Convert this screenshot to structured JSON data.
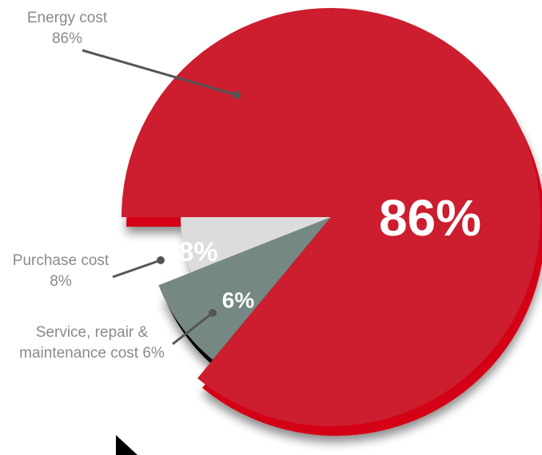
{
  "chart_data": {
    "type": "pie",
    "title": "",
    "slices": [
      {
        "label": "Energy cost",
        "value": 86,
        "value_label": "86%",
        "callout": "Energy cost 86%",
        "color": "#cc1e2e",
        "side_color": "#d40616"
      },
      {
        "label": "Purchase cost",
        "value": 8,
        "value_label": "8%",
        "callout": "Purchase cost 8%",
        "color": "#768884",
        "side_color": "#000000"
      },
      {
        "label": "Service, repair & maintenance cost",
        "value": 6,
        "value_label": "6%",
        "callout": "Service, repair & maintenance cost 6%",
        "color": "#dcdcdc",
        "side_color": "#000000"
      }
    ]
  },
  "callouts": {
    "energy": {
      "line1": "Energy cost",
      "line2": "86%"
    },
    "purchase": {
      "line1": "Purchase cost",
      "line2": "8%"
    },
    "service": {
      "line1": "Service, repair &",
      "line2": "maintenance cost 6%"
    }
  },
  "colors": {
    "callout_text": "#8a8a8a",
    "leader_line": "#555555",
    "slice_label": "#ffffff"
  }
}
